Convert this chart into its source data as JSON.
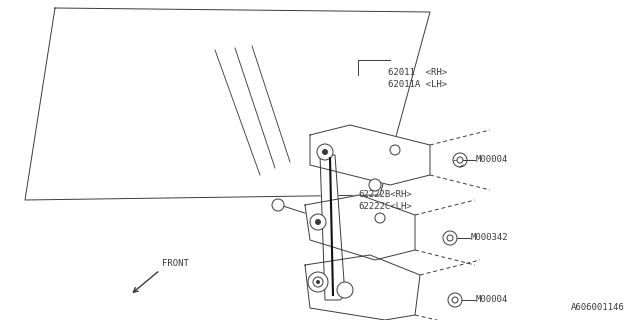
{
  "bg_color": "#ffffff",
  "line_color": "#3a3a3a",
  "diagram_id": "A606001146",
  "labels": {
    "part1_rh": "62011  <RH>",
    "part1_lh": "62011A <LH>",
    "part2_rh": "62222B<RH>",
    "part2_lh": "62222C<LH>",
    "bolt1": "M00004",
    "bolt2": "M000342",
    "bolt3": "M00004",
    "front": "FRONT"
  },
  "figsize": [
    6.4,
    3.2
  ],
  "dpi": 100
}
